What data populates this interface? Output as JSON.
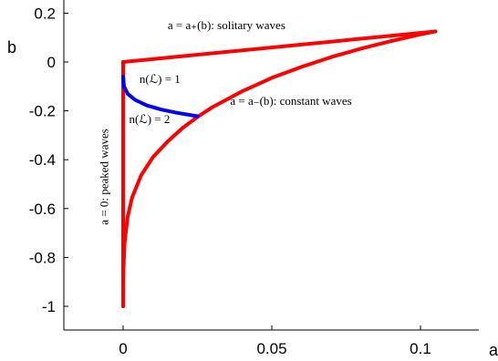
{
  "chart_data": {
    "type": "line",
    "xlabel": "a",
    "ylabel": "b",
    "xlim": [
      -0.02,
      0.125
    ],
    "ylim": [
      -1.1,
      0.25
    ],
    "x_ticks": [
      {
        "value": 0,
        "label": "0"
      },
      {
        "value": 0.05,
        "label": "0.05"
      },
      {
        "value": 0.1,
        "label": "0.1"
      }
    ],
    "y_ticks": [
      {
        "value": 0.2,
        "label": "0.2"
      },
      {
        "value": 0,
        "label": "0"
      },
      {
        "value": -0.2,
        "label": "-0.2"
      },
      {
        "value": -0.4,
        "label": "-0.4"
      },
      {
        "value": -0.6,
        "label": "-0.6"
      },
      {
        "value": -0.8,
        "label": "-0.8"
      },
      {
        "value": -1,
        "label": "-1"
      }
    ],
    "grid": false,
    "colors": {
      "red": "#ff0000",
      "blue": "#0000ff",
      "axis": "#000000"
    },
    "series": [
      {
        "color": "#ff0000",
        "x": [
          0,
          0,
          0
        ],
        "y": [
          -1,
          -0.5,
          0
        ]
      },
      {
        "color": "#ff0000",
        "x": [
          0,
          0.105
        ],
        "y": [
          0,
          0.125
        ]
      },
      {
        "color": "#ff0000",
        "x": [
          0,
          6e-05,
          0.0005,
          0.0015,
          0.003,
          0.006,
          0.01,
          0.015,
          0.02,
          0.025,
          0.03,
          0.04,
          0.05,
          0.06,
          0.07,
          0.08,
          0.09,
          0.1,
          0.105
        ],
        "y": [
          -1,
          -0.86,
          -0.74,
          -0.635,
          -0.555,
          -0.465,
          -0.39,
          -0.325,
          -0.27,
          -0.225,
          -0.185,
          -0.12,
          -0.065,
          -0.02,
          0.02,
          0.055,
          0.085,
          0.113,
          0.125
        ]
      },
      {
        "color": "#0000ff",
        "x": [
          0,
          0.0003,
          0.0015,
          0.004,
          0.008,
          0.013,
          0.018,
          0.022,
          0.025
        ],
        "y": [
          -0.06,
          -0.1,
          -0.13,
          -0.155,
          -0.178,
          -0.195,
          -0.208,
          -0.216,
          -0.222
        ]
      }
    ],
    "annotations": [
      {
        "text": "a = a₊(b): solitary waves",
        "x": 0.015,
        "y": 0.135
      },
      {
        "text": "n(ℒ) = 1",
        "x": 0.0055,
        "y": -0.085
      },
      {
        "text": "a = a₋(b): constant waves",
        "x": 0.036,
        "y": -0.175
      },
      {
        "text": "n(ℒ) = 2",
        "x": 0.002,
        "y": -0.25
      },
      {
        "text": "a = 0: peaked waves",
        "x": -0.005,
        "y": -0.47,
        "rotated": true
      }
    ]
  }
}
